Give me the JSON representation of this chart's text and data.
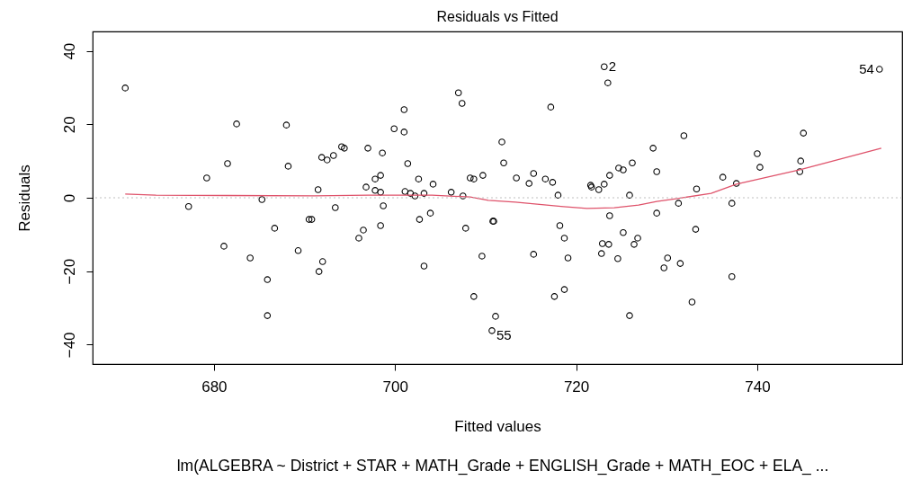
{
  "chart_data": {
    "type": "scatter",
    "title": "Residuals vs Fitted",
    "xlabel": "Fitted values",
    "ylabel": "Residuals",
    "xlim": [
      666.6,
      756.0
    ],
    "xticks": [
      680,
      700,
      720,
      740
    ],
    "ylim": [
      -45.3,
      45.3
    ],
    "yticks": [
      -40,
      -20,
      0,
      20,
      40
    ],
    "grid": false,
    "ref_lines": [
      {
        "axis": "y",
        "value": 0,
        "color": "#bebebe",
        "line_style": "dotted"
      }
    ],
    "annotations": [
      {
        "text": "2",
        "x": 723.1,
        "y": 35.7
      },
      {
        "text": "54",
        "x": 753.5,
        "y": 35.0
      },
      {
        "text": "55",
        "x": 710.7,
        "y": -36.2
      },
      "lm(ALGEBRA ~ District + STAR + MATH_Grade + ENGLISH_Grade + MATH_EOC + ELA_ ..."
    ],
    "series": [
      {
        "marker": "circle",
        "color": "#000000",
        "x": [
          670.2,
          682.5,
          688.0,
          681.5,
          679.2,
          688.2,
          691.9,
          692.5,
          693.2,
          694.1,
          694.4,
          697.0,
          691.5,
          696.8,
          685.3,
          698.6,
          699.9,
          701.0,
          701.0,
          701.4,
          697.8,
          698.4,
          697.8,
          698.4,
          701.1,
          701.7,
          702.2,
          702.6,
          703.2,
          704.2,
          706.2,
          707.5,
          707.0,
          707.4,
          708.3,
          708.7,
          709.7,
          711.8,
          712.0,
          713.4,
          714.8,
          715.3,
          716.6,
          717.4,
          718.0,
          717.2,
          723.1,
          723.5,
          721.6,
          721.7,
          722.5,
          723.1,
          723.7,
          724.7,
          725.2,
          726.2,
          725.9,
          753.5,
          728.5,
          731.9,
          728.9,
          733.3,
          736.2,
          737.7,
          740.0,
          740.3,
          745.1,
          744.8,
          744.7,
          731.3,
          737.2,
          677.2,
          686.7,
          681.1,
          684.0,
          685.9,
          685.9,
          689.3,
          690.5,
          690.8,
          693.4,
          692.0,
          691.6,
          696.5,
          696.0,
          698.4,
          698.7,
          702.7,
          703.9,
          703.2,
          707.8,
          709.6,
          710.9,
          710.8,
          708.7,
          711.1,
          710.7,
          715.3,
          718.2,
          718.7,
          719.1,
          717.6,
          718.7,
          723.7,
          725.2,
          722.9,
          723.6,
          722.8,
          724.6,
          725.9,
          726.4,
          726.8,
          728.9,
          733.2,
          730.1,
          729.7,
          731.5,
          737.2,
          732.8
        ],
        "values": [
          29.9,
          20.1,
          19.8,
          9.3,
          5.4,
          8.6,
          11.0,
          10.3,
          11.5,
          13.9,
          13.5,
          13.5,
          2.2,
          2.9,
          -0.5,
          12.2,
          18.8,
          24.0,
          17.9,
          9.3,
          5.1,
          6.1,
          2.0,
          1.5,
          1.7,
          1.2,
          0.5,
          5.1,
          1.2,
          3.7,
          1.5,
          0.5,
          28.6,
          25.7,
          5.4,
          5.1,
          6.1,
          15.2,
          9.5,
          5.4,
          3.9,
          6.6,
          5.1,
          4.2,
          0.7,
          24.7,
          35.7,
          31.3,
          3.4,
          2.9,
          2.2,
          3.7,
          6.1,
          8.1,
          7.6,
          9.5,
          0.7,
          35.0,
          13.5,
          16.9,
          7.1,
          2.4,
          5.6,
          3.9,
          12.0,
          8.3,
          17.6,
          10.0,
          7.1,
          -1.5,
          -1.5,
          -2.4,
          -8.3,
          -13.2,
          -16.4,
          -22.3,
          -32.1,
          -14.4,
          -5.9,
          -5.9,
          -2.7,
          -17.4,
          -20.1,
          -8.8,
          -11.0,
          -7.6,
          -2.2,
          -5.9,
          -4.2,
          -18.6,
          -8.3,
          -15.9,
          -6.4,
          -6.4,
          -26.9,
          -32.3,
          -36.2,
          -15.4,
          -7.6,
          -11.0,
          -16.4,
          -26.9,
          -25.0,
          -4.9,
          -9.5,
          -12.5,
          -12.7,
          -15.2,
          -16.6,
          -32.1,
          -12.7,
          -11.0,
          -4.2,
          -8.6,
          -16.4,
          -19.1,
          -17.9,
          -21.5,
          -28.4
        ]
      },
      {
        "type": "line",
        "color": "#df536b",
        "x": [
          670.2,
          673.6,
          691.1,
          697.0,
          704.1,
          708.3,
          710.3,
          713.3,
          718.6,
          721.2,
          724.2,
          726.9,
          728.9,
          731.2,
          734.9,
          737.7,
          744.7,
          753.7
        ],
        "values": [
          1.0,
          0.7,
          0.5,
          0.7,
          0.7,
          0.2,
          -0.7,
          -1.2,
          -2.4,
          -2.9,
          -2.7,
          -2.0,
          -1.0,
          -0.2,
          1.2,
          3.7,
          7.6,
          13.5
        ]
      }
    ]
  }
}
